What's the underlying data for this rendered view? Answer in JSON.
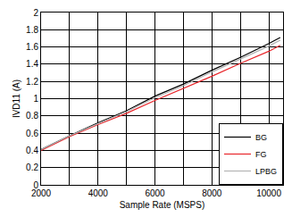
{
  "chart_data": {
    "type": "line",
    "x_label": "Sample Rate (MSPS)",
    "y_label": "IVD11 (A)",
    "x": [
      2000,
      3000,
      4000,
      5000,
      6000,
      7000,
      8000,
      9000,
      10000,
      10400
    ],
    "series": [
      {
        "name": "BG",
        "color": "#000000",
        "values": [
          0.41,
          0.57,
          0.72,
          0.86,
          1.03,
          1.17,
          1.33,
          1.48,
          1.64,
          1.71
        ]
      },
      {
        "name": "FG",
        "color": "#e8262b",
        "values": [
          0.4,
          0.56,
          0.7,
          0.83,
          0.98,
          1.12,
          1.26,
          1.41,
          1.55,
          1.62
        ]
      },
      {
        "name": "LPBG",
        "color": "#b4b4b4",
        "values": [
          0.41,
          0.57,
          0.71,
          0.85,
          1.01,
          1.15,
          1.31,
          1.46,
          1.61,
          1.68
        ]
      }
    ],
    "xlim": [
      2000,
      10500
    ],
    "xticks": [
      2000,
      4000,
      6000,
      8000,
      10000
    ],
    "ylim": [
      0,
      2
    ],
    "yticks": [
      0,
      0.2,
      0.4,
      0.6,
      0.8,
      1,
      1.2,
      1.4,
      1.6,
      1.8,
      2
    ],
    "grid": true,
    "legend": "bottom right"
  }
}
